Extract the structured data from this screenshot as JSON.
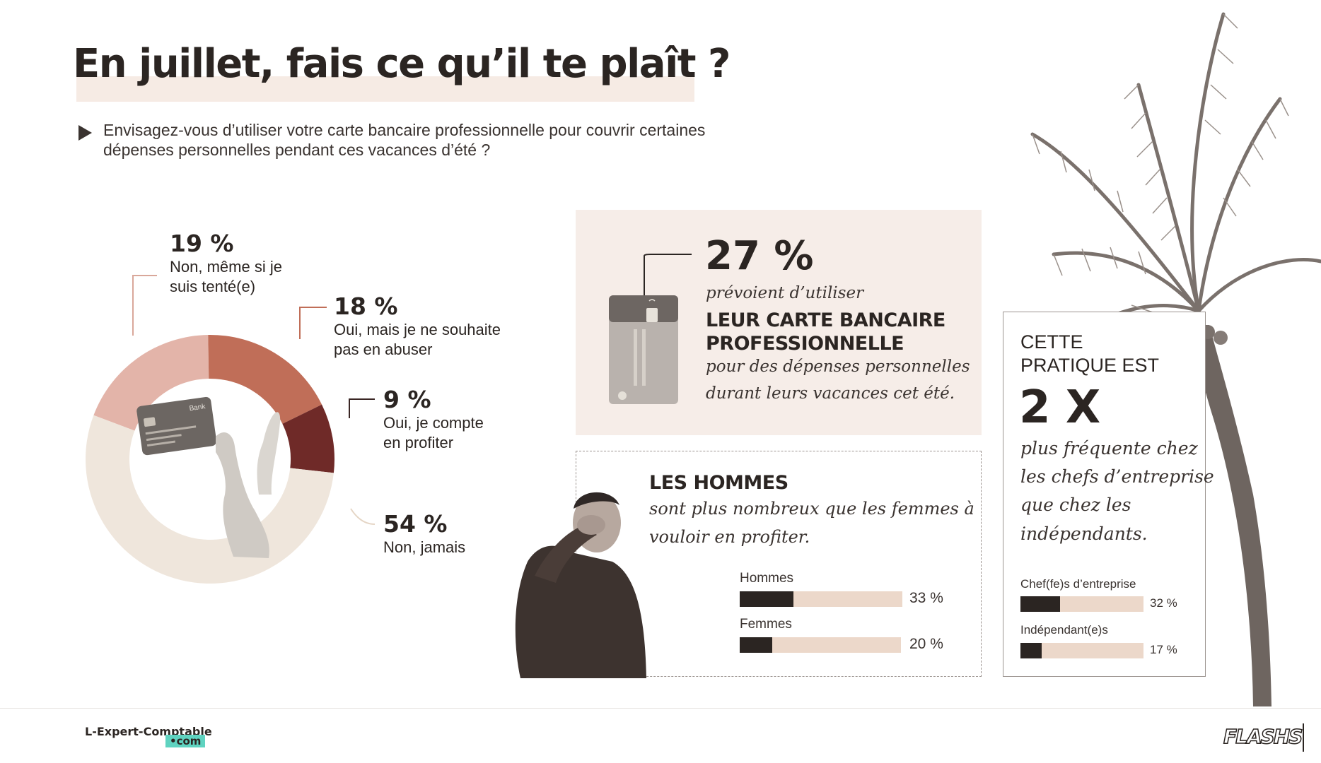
{
  "header": {
    "title": "En juillet, fais ce qu’il te plaît ?",
    "question": "Envisagez-vous d’utiliser votre carte bancaire professionnelle pour couvrir certaines dépenses personnelles pendant ces vacances d’été ?"
  },
  "donut": {
    "card_brand": "Bank",
    "labels": [
      {
        "pct": "19 %",
        "text": "Non, même si je suis tenté(e)"
      },
      {
        "pct": "18 %",
        "text": "Oui, mais je ne souhaite pas en abuser"
      },
      {
        "pct": "9 %",
        "text": "Oui, je compte en profiter"
      },
      {
        "pct": "54 %",
        "text": "Non, jamais"
      }
    ]
  },
  "card_box": {
    "pct": "27 %",
    "line1": "prévoient d’utiliser",
    "line2": "LEUR CARTE BANCAIRE",
    "line3": "PROFESSIONNELLE",
    "line4": "pour des dépenses personnelles",
    "line5": "durant leurs vacances cet été."
  },
  "men_box": {
    "heading": "LES HOMMES",
    "line1": "sont plus nombreux que les femmes à",
    "line2": "vouloir en profiter.",
    "bars": [
      {
        "label": "Hommes",
        "value_text": "33 %"
      },
      {
        "label": "Femmes",
        "value_text": "20 %"
      }
    ]
  },
  "practice_box": {
    "line1": "CETTE",
    "line2": "PRATIQUE EST",
    "big": "2 X",
    "text": [
      "plus fréquente chez",
      "les chefs d’entreprise",
      "que chez les",
      "indépendants."
    ],
    "bars": [
      {
        "label": "Chef(fe)s d’entreprise",
        "value_text": "32 %"
      },
      {
        "label": "Indépendant(e)s",
        "value_text": "17 %"
      }
    ]
  },
  "footer": {
    "logo_main": "L-Expert-Comptable",
    "logo_suffix": "•com",
    "right_logo": "FLASHS"
  },
  "colors": {
    "dark": "#2b2522",
    "slice_non_tente": "#e3b4a9",
    "slice_oui_abuser": "#c06e58",
    "slice_oui_profiter": "#6f2a28",
    "slice_non_jamais": "#efe6dc",
    "box_bg": "#f6ede8",
    "bar_track": "#ecd8ca",
    "logo_accent": "#5fd3c0"
  },
  "chart_data": [
    {
      "type": "pie",
      "categories": [
        "Non, même si je suis tenté(e)",
        "Oui, mais je ne souhaite pas en abuser",
        "Oui, je compte en profiter",
        "Non, jamais"
      ],
      "values": [
        19,
        18,
        9,
        54
      ],
      "colors": [
        "#e3b4a9",
        "#c06e58",
        "#6f2a28",
        "#efe6dc"
      ],
      "donut": true
    },
    {
      "type": "bar",
      "orientation": "horizontal",
      "categories": [
        "Hommes",
        "Femmes"
      ],
      "values": [
        33,
        20
      ],
      "xlim": [
        0,
        100
      ]
    },
    {
      "type": "bar",
      "orientation": "horizontal",
      "categories": [
        "Chef(fe)s d’entreprise",
        "Indépendant(e)s"
      ],
      "values": [
        32,
        17
      ],
      "xlim": [
        0,
        100
      ]
    }
  ]
}
